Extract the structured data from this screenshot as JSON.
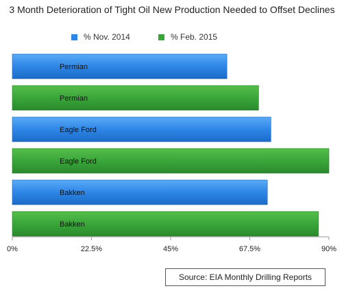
{
  "chart_data": {
    "type": "bar",
    "orientation": "horizontal",
    "title": "3 Month Deterioration of Tight Oil New Production Needed to Offset Declines",
    "categories": [
      "Permian",
      "Eagle Ford",
      "Bakken"
    ],
    "series": [
      {
        "name": "% Nov. 2014",
        "color": "#2e86e6",
        "values": [
          61,
          73.5,
          72.5
        ]
      },
      {
        "name": "% Feb. 2015",
        "color": "#3aa63a",
        "values": [
          70,
          90,
          87
        ]
      }
    ],
    "bar_labels": [
      "Permian",
      "Permian",
      "Eagle Ford",
      "Eagle Ford",
      "Bakken",
      "Bakken"
    ],
    "xlim": [
      0,
      90
    ],
    "xticks": [
      0,
      22.5,
      45,
      67.5,
      90
    ],
    "xtick_labels": [
      "0%",
      "22.5%",
      "45%",
      "67.5%",
      "90%"
    ],
    "legend_position": "top",
    "grid": false,
    "source_note": "Source: EIA Monthly Drilling Reports"
  }
}
